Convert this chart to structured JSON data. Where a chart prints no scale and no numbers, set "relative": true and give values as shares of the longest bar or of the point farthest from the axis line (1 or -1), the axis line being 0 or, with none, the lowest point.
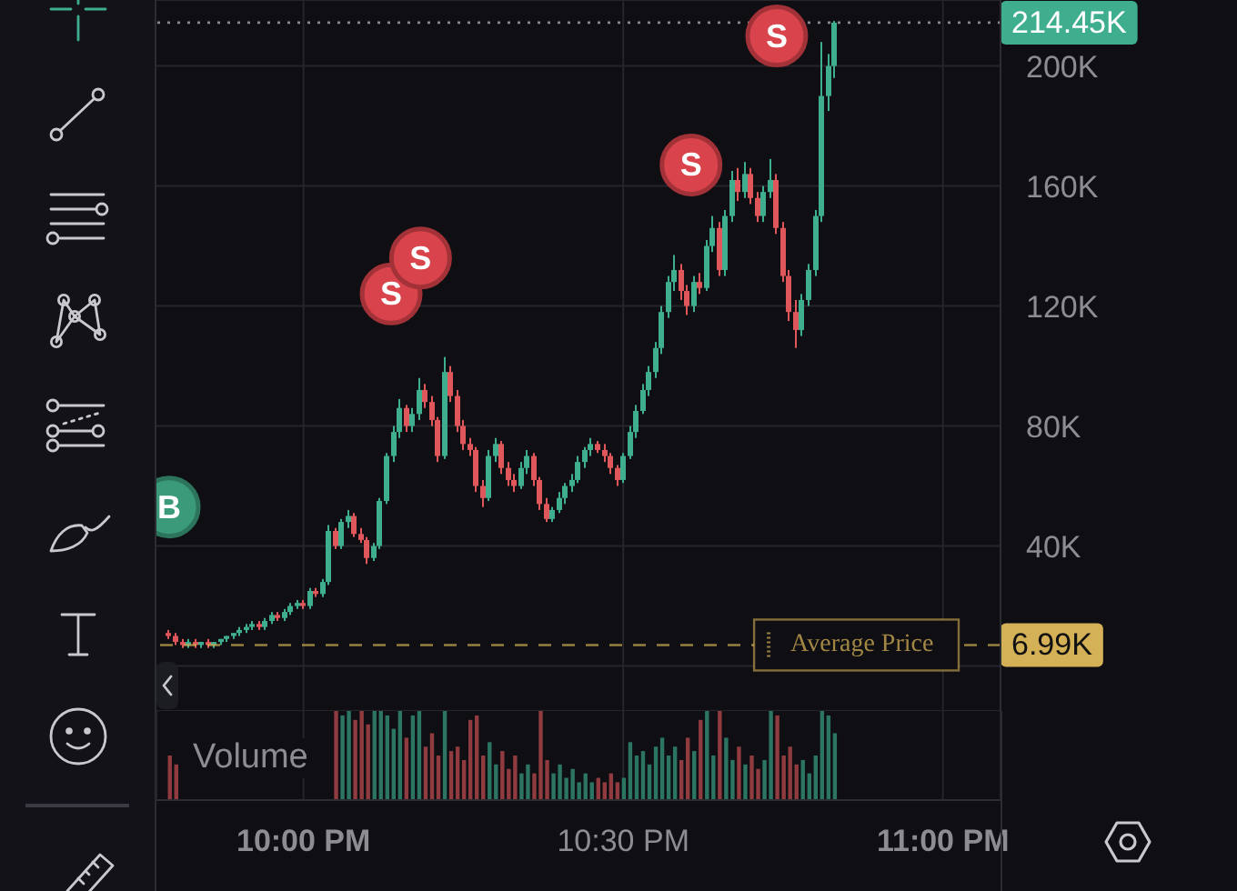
{
  "chart_data": [
    {
      "type": "candlestick",
      "x": [
        21.79,
        21.8,
        21.81,
        21.82,
        21.83,
        21.84,
        21.85,
        21.86,
        21.87,
        21.88,
        21.89,
        21.9,
        21.91,
        21.92,
        21.93,
        21.94,
        21.95,
        21.96,
        21.97,
        21.98,
        21.99,
        22,
        22.01,
        22.02,
        22.03,
        22.04,
        22.05,
        22.06,
        22.07,
        22.08,
        22.09,
        22.1,
        22.11,
        22.12,
        22.13,
        22.14,
        22.15,
        22.16,
        22.17,
        22.18,
        22.19,
        22.2,
        22.21,
        22.22,
        22.23,
        22.24,
        22.25,
        22.26,
        22.27,
        22.28,
        22.29,
        22.3,
        22.31,
        22.32,
        22.33,
        22.34,
        22.35,
        22.36,
        22.37,
        22.38,
        22.39,
        22.4,
        22.41,
        22.42,
        22.43,
        22.44,
        22.45,
        22.46,
        22.47,
        22.48,
        22.49,
        22.5,
        22.51,
        22.52,
        22.53,
        22.54,
        22.55,
        22.56,
        22.57,
        22.58,
        22.59,
        22.6,
        22.61,
        22.62,
        22.63,
        22.64,
        22.65,
        22.66,
        22.67,
        22.68,
        22.69,
        22.7,
        22.71,
        22.72,
        22.73,
        22.74,
        22.75,
        22.76,
        22.77,
        22.78,
        22.79,
        22.8,
        22.81,
        22.82,
        22.83
      ],
      "ohlc": [
        [
          11000,
          12000,
          9000,
          10000
        ],
        [
          10000,
          11000,
          7000,
          8000
        ],
        [
          8000,
          9000,
          6000,
          7000
        ],
        [
          7000,
          9000,
          6000,
          8000
        ],
        [
          8000,
          9000,
          6000,
          7000
        ],
        [
          7000,
          8000,
          6000,
          8000
        ],
        [
          8000,
          9000,
          6000,
          7000
        ],
        [
          7000,
          8000,
          6000,
          8000
        ],
        [
          8000,
          9000,
          7000,
          9000
        ],
        [
          9000,
          10000,
          8000,
          10000
        ],
        [
          10000,
          11000,
          9000,
          11000
        ],
        [
          11000,
          13000,
          10000,
          12000
        ],
        [
          12000,
          14000,
          11000,
          13000
        ],
        [
          13000,
          15000,
          12000,
          14000
        ],
        [
          14000,
          15000,
          12000,
          13000
        ],
        [
          13000,
          16000,
          12000,
          15000
        ],
        [
          15000,
          18000,
          14000,
          17000
        ],
        [
          17000,
          18000,
          15000,
          16000
        ],
        [
          16000,
          19000,
          15000,
          18000
        ],
        [
          18000,
          21000,
          17000,
          20000
        ],
        [
          20000,
          22000,
          19000,
          21000
        ],
        [
          21000,
          22000,
          19000,
          20000
        ],
        [
          20000,
          26000,
          19000,
          25000
        ],
        [
          25000,
          26000,
          23000,
          24000
        ],
        [
          24000,
          29000,
          23000,
          28000
        ],
        [
          28000,
          47000,
          27000,
          45000
        ],
        [
          45000,
          46000,
          39000,
          40000
        ],
        [
          40000,
          49000,
          39000,
          48000
        ],
        [
          48000,
          52000,
          46000,
          50000
        ],
        [
          50000,
          51000,
          43000,
          44000
        ],
        [
          44000,
          46000,
          41000,
          42000
        ],
        [
          42000,
          43000,
          34000,
          36000
        ],
        [
          36000,
          41000,
          35000,
          40000
        ],
        [
          40000,
          56000,
          39000,
          55000
        ],
        [
          55000,
          71000,
          54000,
          70000
        ],
        [
          70000,
          80000,
          68000,
          78000
        ],
        [
          78000,
          89000,
          76000,
          86000
        ],
        [
          86000,
          87000,
          78000,
          80000
        ],
        [
          80000,
          86000,
          78000,
          84000
        ],
        [
          84000,
          96000,
          82000,
          92000
        ],
        [
          92000,
          94000,
          86000,
          88000
        ],
        [
          88000,
          90000,
          80000,
          82000
        ],
        [
          82000,
          83000,
          68000,
          70000
        ],
        [
          70000,
          103000,
          69000,
          98000
        ],
        [
          98000,
          100000,
          88000,
          90000
        ],
        [
          90000,
          92000,
          78000,
          80000
        ],
        [
          80000,
          82000,
          72000,
          74000
        ],
        [
          74000,
          76000,
          70000,
          72000
        ],
        [
          72000,
          73000,
          58000,
          60000
        ],
        [
          60000,
          62000,
          53000,
          56000
        ],
        [
          56000,
          72000,
          55000,
          70000
        ],
        [
          70000,
          76000,
          68000,
          74000
        ],
        [
          74000,
          75000,
          64000,
          66000
        ],
        [
          66000,
          68000,
          60000,
          62000
        ],
        [
          62000,
          64000,
          58000,
          60000
        ],
        [
          60000,
          68000,
          59000,
          66000
        ],
        [
          66000,
          72000,
          64000,
          70000
        ],
        [
          70000,
          71000,
          60000,
          62000
        ],
        [
          62000,
          63000,
          52000,
          54000
        ],
        [
          54000,
          56000,
          48000,
          49000
        ],
        [
          49000,
          53000,
          48000,
          52000
        ],
        [
          52000,
          58000,
          51000,
          56000
        ],
        [
          56000,
          61000,
          54000,
          60000
        ],
        [
          60000,
          64000,
          58000,
          62000
        ],
        [
          62000,
          70000,
          61000,
          68000
        ],
        [
          68000,
          73000,
          66000,
          72000
        ],
        [
          72000,
          76000,
          70000,
          74000
        ],
        [
          74000,
          75000,
          71000,
          72000
        ],
        [
          72000,
          74000,
          68000,
          70000
        ],
        [
          70000,
          71000,
          64000,
          66000
        ],
        [
          66000,
          67000,
          60000,
          62000
        ],
        [
          62000,
          71000,
          61000,
          70000
        ],
        [
          70000,
          80000,
          69000,
          78000
        ],
        [
          78000,
          87000,
          76000,
          85000
        ],
        [
          85000,
          94000,
          84000,
          92000
        ],
        [
          92000,
          100000,
          90000,
          98000
        ],
        [
          98000,
          108000,
          96000,
          106000
        ],
        [
          106000,
          120000,
          104000,
          118000
        ],
        [
          118000,
          130000,
          116000,
          128000
        ],
        [
          128000,
          137000,
          125000,
          132000
        ],
        [
          132000,
          134000,
          122000,
          125000
        ],
        [
          125000,
          127000,
          117000,
          120000
        ],
        [
          120000,
          130000,
          118000,
          128000
        ],
        [
          128000,
          131000,
          124000,
          126000
        ],
        [
          126000,
          142000,
          125000,
          140000
        ],
        [
          140000,
          150000,
          138000,
          146000
        ],
        [
          146000,
          148000,
          130000,
          132000
        ],
        [
          132000,
          152000,
          130000,
          150000
        ],
        [
          150000,
          165000,
          148000,
          162000
        ],
        [
          162000,
          166000,
          155000,
          158000
        ],
        [
          158000,
          168000,
          156000,
          164000
        ],
        [
          164000,
          166000,
          154000,
          156000
        ],
        [
          156000,
          158000,
          148000,
          150000
        ],
        [
          150000,
          160000,
          148000,
          158000
        ],
        [
          158000,
          169000,
          156000,
          162000
        ],
        [
          162000,
          164000,
          144000,
          146000
        ],
        [
          146000,
          148000,
          128000,
          130000
        ],
        [
          130000,
          132000,
          115000,
          118000
        ],
        [
          118000,
          122000,
          106000,
          112000
        ],
        [
          112000,
          124000,
          110000,
          122000
        ],
        [
          122000,
          134000,
          120000,
          132000
        ],
        [
          132000,
          152000,
          130000,
          150000
        ],
        [
          150000,
          208000,
          148000,
          190000
        ],
        [
          190000,
          204000,
          185000,
          200000
        ],
        [
          200000,
          215000,
          196000,
          214450
        ]
      ],
      "colors": [
        "#e0575b",
        "#e0575b",
        "#e0575b",
        "#3fae8f",
        "#e0575b",
        "#3fae8f",
        "#e0575b",
        "#3fae8f",
        "#3fae8f",
        "#3fae8f",
        "#3fae8f",
        "#3fae8f",
        "#3fae8f",
        "#3fae8f",
        "#e0575b",
        "#3fae8f",
        "#3fae8f",
        "#e0575b",
        "#3fae8f",
        "#3fae8f",
        "#3fae8f",
        "#e0575b",
        "#3fae8f",
        "#e0575b",
        "#3fae8f",
        "#3fae8f",
        "#e0575b",
        "#3fae8f",
        "#3fae8f",
        "#e0575b",
        "#e0575b",
        "#e0575b",
        "#3fae8f",
        "#3fae8f",
        "#3fae8f",
        "#3fae8f",
        "#3fae8f",
        "#e0575b",
        "#3fae8f",
        "#3fae8f",
        "#e0575b",
        "#e0575b",
        "#e0575b",
        "#3fae8f",
        "#e0575b",
        "#e0575b",
        "#e0575b",
        "#e0575b",
        "#e0575b",
        "#e0575b",
        "#3fae8f",
        "#3fae8f",
        "#e0575b",
        "#e0575b",
        "#e0575b",
        "#3fae8f",
        "#3fae8f",
        "#e0575b",
        "#e0575b",
        "#e0575b",
        "#3fae8f",
        "#3fae8f",
        "#3fae8f",
        "#3fae8f",
        "#3fae8f",
        "#3fae8f",
        "#3fae8f",
        "#e0575b",
        "#e0575b",
        "#e0575b",
        "#e0575b",
        "#3fae8f",
        "#3fae8f",
        "#3fae8f",
        "#3fae8f",
        "#3fae8f",
        "#3fae8f",
        "#3fae8f",
        "#3fae8f",
        "#3fae8f",
        "#e0575b",
        "#e0575b",
        "#3fae8f",
        "#e0575b",
        "#3fae8f",
        "#3fae8f",
        "#e0575b",
        "#3fae8f",
        "#3fae8f",
        "#e0575b",
        "#3fae8f",
        "#e0575b",
        "#e0575b",
        "#3fae8f",
        "#3fae8f",
        "#e0575b",
        "#e0575b",
        "#e0575b",
        "#e0575b",
        "#3fae8f",
        "#3fae8f",
        "#3fae8f",
        "#3fae8f",
        "#3fae8f",
        "#3fae8f"
      ],
      "series": [
        {
          "type": "scatter",
          "color": "#d9434b",
          "x": [
            22.137,
            22.183,
            22.606,
            22.74
          ],
          "values": [
            124000,
            136000,
            167000,
            210000
          ],
          "value_labels": [
            "S",
            "S",
            "S",
            "S"
          ],
          "marker": "circle"
        },
        {
          "type": "scatter",
          "color": "#3a9a7a",
          "x": [
            21.79
          ],
          "values": [
            53000
          ],
          "value_labels": [
            "B"
          ],
          "marker": "circle"
        }
      ],
      "xlim": [
        21.77,
        23.09
      ],
      "ylim": [
        -15000,
        222000
      ],
      "xticks": [
        22,
        22.5,
        23
      ],
      "yticks": [
        {
          "value": 0,
          "label": null
        },
        {
          "value": 40000,
          "label": "40K"
        },
        {
          "value": 80000,
          "label": "80K"
        },
        {
          "value": 120000,
          "label": "120K"
        },
        {
          "value": 160000,
          "label": "160K"
        },
        {
          "value": 200000,
          "label": "200K"
        }
      ],
      "tick_labels": "y",
      "grid": true,
      "ref_lines": [
        {
          "axis": "y",
          "value": 6990,
          "label": "Average Price",
          "color": "#d4b056",
          "line_style": "dashed"
        },
        {
          "axis": "y",
          "value": 214450,
          "line_style": "dotted"
        }
      ],
      "annotations": [
        "6.99K",
        "214.45K"
      ]
    },
    {
      "type": "bar",
      "title": "Volume",
      "relative": true,
      "x": [
        21.79,
        21.8,
        21.81,
        21.82,
        21.83,
        21.84,
        21.85,
        21.86,
        21.87,
        21.88,
        21.89,
        21.9,
        21.91,
        21.92,
        21.93,
        21.94,
        21.95,
        21.96,
        21.97,
        21.98,
        21.99,
        22,
        22.01,
        22.02,
        22.03,
        22.04,
        22.05,
        22.06,
        22.07,
        22.08,
        22.09,
        22.1,
        22.11,
        22.12,
        22.13,
        22.14,
        22.15,
        22.16,
        22.17,
        22.18,
        22.19,
        22.2,
        22.21,
        22.22,
        22.23,
        22.24,
        22.25,
        22.26,
        22.27,
        22.28,
        22.29,
        22.3,
        22.31,
        22.32,
        22.33,
        22.34,
        22.35,
        22.36,
        22.37,
        22.38,
        22.39,
        22.4,
        22.41,
        22.42,
        22.43,
        22.44,
        22.45,
        22.46,
        22.47,
        22.48,
        22.49,
        22.5,
        22.51,
        22.52,
        22.53,
        22.54,
        22.55,
        22.56,
        22.57,
        22.58,
        22.59,
        22.6,
        22.61,
        22.62,
        22.63,
        22.64,
        22.65,
        22.66,
        22.67,
        22.68,
        22.69,
        22.7,
        22.71,
        22.72,
        22.73,
        22.74,
        22.75,
        22.76,
        22.77,
        22.78,
        22.79,
        22.8,
        22.81,
        22.82,
        22.83
      ],
      "values": [
        0.5,
        0.4,
        null,
        null,
        null,
        null,
        null,
        null,
        null,
        null,
        null,
        null,
        null,
        null,
        null,
        null,
        null,
        null,
        null,
        null,
        null,
        null,
        null,
        null,
        null,
        null,
        1,
        0.95,
        1,
        0.9,
        1,
        0.85,
        1,
        1,
        0.95,
        0.8,
        1,
        0.7,
        0.95,
        1,
        0.6,
        0.75,
        0.5,
        1,
        0.55,
        0.6,
        0.45,
        0.9,
        0.95,
        0.5,
        0.65,
        0.4,
        0.55,
        0.35,
        0.5,
        0.3,
        0.4,
        0.3,
        1,
        0.45,
        0.3,
        0.4,
        0.25,
        0.35,
        0.2,
        0.3,
        0.2,
        0.25,
        0.2,
        0.3,
        0.2,
        0.25,
        0.65,
        0.5,
        0.55,
        0.4,
        0.6,
        0.7,
        0.5,
        0.6,
        0.45,
        0.7,
        0.55,
        0.9,
        1,
        0.5,
        1,
        0.7,
        0.45,
        0.6,
        0.4,
        0.5,
        0.35,
        0.45,
        1,
        0.95,
        0.5,
        0.6,
        0.4,
        0.45,
        0.3,
        0.5,
        1,
        0.95,
        0.75
      ],
      "colors": [
        "#8f3b3f",
        "#8f3b3f",
        "#8f3b3f",
        "#2c7563",
        "#8f3b3f",
        "#2c7563",
        "#8f3b3f",
        "#2c7563",
        "#2c7563",
        "#2c7563",
        "#2c7563",
        "#2c7563",
        "#2c7563",
        "#2c7563",
        "#8f3b3f",
        "#2c7563",
        "#2c7563",
        "#8f3b3f",
        "#2c7563",
        "#2c7563",
        "#2c7563",
        "#8f3b3f",
        "#2c7563",
        "#8f3b3f",
        "#2c7563",
        "#2c7563",
        "#8f3b3f",
        "#2c7563",
        "#2c7563",
        "#8f3b3f",
        "#8f3b3f",
        "#8f3b3f",
        "#2c7563",
        "#2c7563",
        "#2c7563",
        "#2c7563",
        "#2c7563",
        "#8f3b3f",
        "#2c7563",
        "#2c7563",
        "#8f3b3f",
        "#8f3b3f",
        "#8f3b3f",
        "#2c7563",
        "#8f3b3f",
        "#8f3b3f",
        "#8f3b3f",
        "#8f3b3f",
        "#8f3b3f",
        "#8f3b3f",
        "#2c7563",
        "#2c7563",
        "#8f3b3f",
        "#8f3b3f",
        "#8f3b3f",
        "#2c7563",
        "#2c7563",
        "#8f3b3f",
        "#8f3b3f",
        "#8f3b3f",
        "#2c7563",
        "#2c7563",
        "#2c7563",
        "#2c7563",
        "#2c7563",
        "#2c7563",
        "#2c7563",
        "#8f3b3f",
        "#8f3b3f",
        "#8f3b3f",
        "#8f3b3f",
        "#2c7563",
        "#2c7563",
        "#2c7563",
        "#2c7563",
        "#2c7563",
        "#2c7563",
        "#2c7563",
        "#2c7563",
        "#2c7563",
        "#8f3b3f",
        "#8f3b3f",
        "#2c7563",
        "#8f3b3f",
        "#2c7563",
        "#2c7563",
        "#8f3b3f",
        "#2c7563",
        "#2c7563",
        "#8f3b3f",
        "#2c7563",
        "#8f3b3f",
        "#8f3b3f",
        "#2c7563",
        "#2c7563",
        "#8f3b3f",
        "#8f3b3f",
        "#8f3b3f",
        "#8f3b3f",
        "#2c7563",
        "#2c7563",
        "#2c7563",
        "#2c7563",
        "#2c7563",
        "#2c7563"
      ],
      "xlim": [
        21.77,
        23.09
      ],
      "xticks": [
        {
          "value": 22,
          "label": "10:00 PM"
        },
        {
          "value": 22.5,
          "label": "10:30 PM"
        },
        {
          "value": 23,
          "label": "11:00 PM"
        }
      ],
      "tick_labels": "x",
      "grid": "x"
    }
  ]
}
